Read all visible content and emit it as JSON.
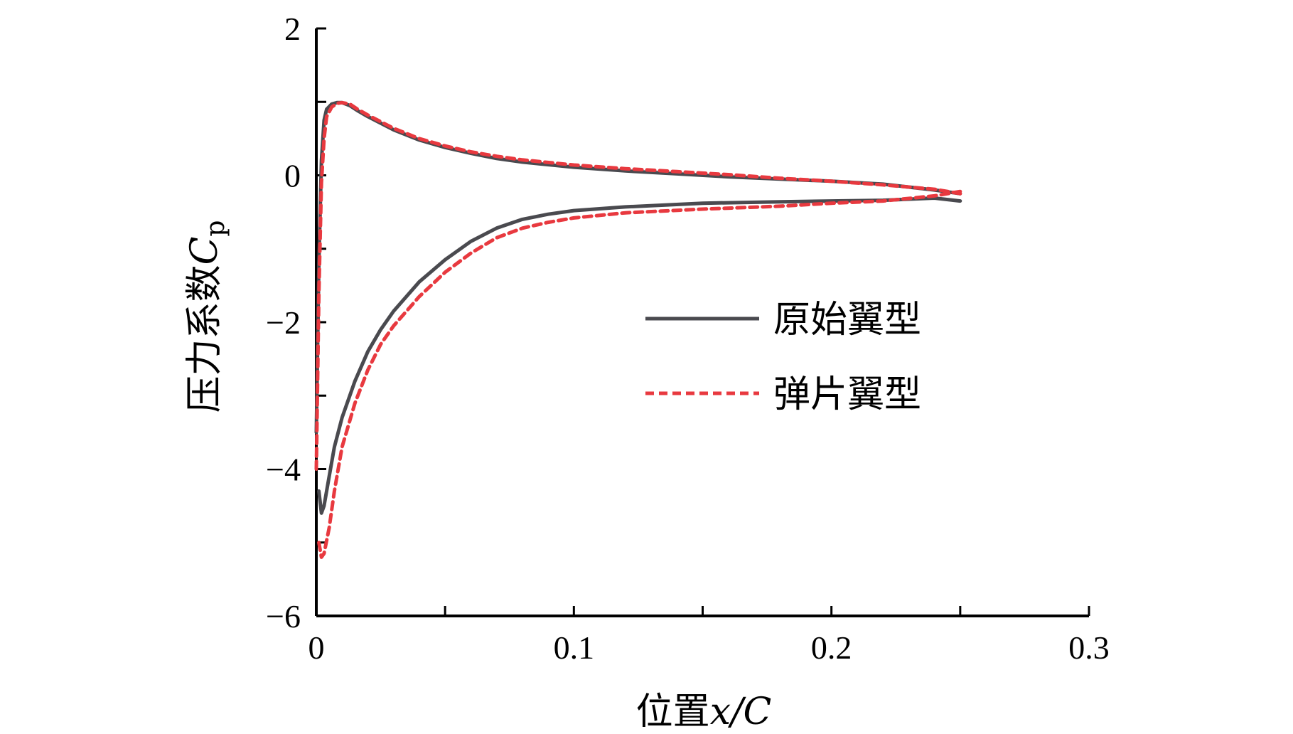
{
  "chart_data": {
    "type": "line",
    "xlabel": {
      "prefix": "位置",
      "var": "x/C"
    },
    "ylabel": {
      "prefix": "压力系数",
      "var": "C",
      "sub": "p"
    },
    "xlim": [
      0,
      0.3
    ],
    "ylim": [
      -6,
      2
    ],
    "x_ticks": [
      0,
      0.1,
      0.2,
      0.3
    ],
    "x_tick_labels": [
      "0",
      "0.1",
      "0.2",
      "0.3"
    ],
    "y_ticks": [
      -6,
      -4,
      -2,
      0,
      2
    ],
    "y_tick_labels": [
      "−6",
      "−4",
      "−2",
      "0",
      "2"
    ],
    "grid": false,
    "legend_position": "center-right",
    "series": [
      {
        "name": "原始翼型",
        "color": "#4a4a4f",
        "style": "solid",
        "upper": {
          "x": [
            0.0,
            0.001,
            0.002,
            0.003,
            0.004,
            0.006,
            0.008,
            0.01,
            0.013,
            0.016,
            0.02,
            0.03,
            0.04,
            0.05,
            0.06,
            0.07,
            0.08,
            0.1,
            0.12,
            0.14,
            0.16,
            0.18,
            0.2,
            0.22,
            0.24,
            0.25
          ],
          "y": [
            -3.5,
            -1.2,
            0.2,
            0.75,
            0.9,
            0.97,
            0.99,
            0.99,
            0.95,
            0.88,
            0.8,
            0.62,
            0.48,
            0.38,
            0.3,
            0.23,
            0.18,
            0.11,
            0.06,
            0.02,
            -0.02,
            -0.05,
            -0.08,
            -0.12,
            -0.2,
            -0.25
          ]
        },
        "lower": {
          "x": [
            0.001,
            0.002,
            0.003,
            0.005,
            0.007,
            0.01,
            0.015,
            0.02,
            0.025,
            0.03,
            0.04,
            0.05,
            0.06,
            0.07,
            0.08,
            0.09,
            0.1,
            0.12,
            0.15,
            0.18,
            0.2,
            0.22,
            0.24,
            0.25
          ],
          "y": [
            -4.3,
            -4.6,
            -4.5,
            -4.1,
            -3.7,
            -3.3,
            -2.8,
            -2.4,
            -2.1,
            -1.85,
            -1.45,
            -1.15,
            -0.9,
            -0.72,
            -0.6,
            -0.53,
            -0.48,
            -0.43,
            -0.38,
            -0.36,
            -0.35,
            -0.34,
            -0.31,
            -0.35
          ]
        }
      },
      {
        "name": "弹片翼型",
        "color": "#e8393f",
        "style": "dashed",
        "upper": {
          "x": [
            0.0,
            0.001,
            0.002,
            0.003,
            0.004,
            0.006,
            0.008,
            0.01,
            0.013,
            0.016,
            0.02,
            0.03,
            0.04,
            0.05,
            0.06,
            0.07,
            0.08,
            0.1,
            0.12,
            0.14,
            0.16,
            0.18,
            0.2,
            0.22,
            0.24,
            0.25
          ],
          "y": [
            -4.0,
            -1.6,
            -0.1,
            0.5,
            0.8,
            0.93,
            0.98,
            0.99,
            0.97,
            0.9,
            0.82,
            0.64,
            0.5,
            0.4,
            0.32,
            0.26,
            0.21,
            0.14,
            0.09,
            0.05,
            0.01,
            -0.04,
            -0.08,
            -0.13,
            -0.19,
            -0.25
          ]
        },
        "lower": {
          "x": [
            0.001,
            0.002,
            0.003,
            0.005,
            0.007,
            0.01,
            0.015,
            0.02,
            0.025,
            0.03,
            0.04,
            0.05,
            0.06,
            0.07,
            0.08,
            0.09,
            0.1,
            0.12,
            0.15,
            0.18,
            0.2,
            0.22,
            0.24,
            0.25
          ],
          "y": [
            -5.0,
            -5.2,
            -5.15,
            -4.8,
            -4.3,
            -3.7,
            -3.1,
            -2.65,
            -2.3,
            -2.05,
            -1.65,
            -1.32,
            -1.06,
            -0.85,
            -0.72,
            -0.64,
            -0.58,
            -0.51,
            -0.46,
            -0.42,
            -0.38,
            -0.35,
            -0.28,
            -0.22
          ]
        }
      }
    ]
  }
}
